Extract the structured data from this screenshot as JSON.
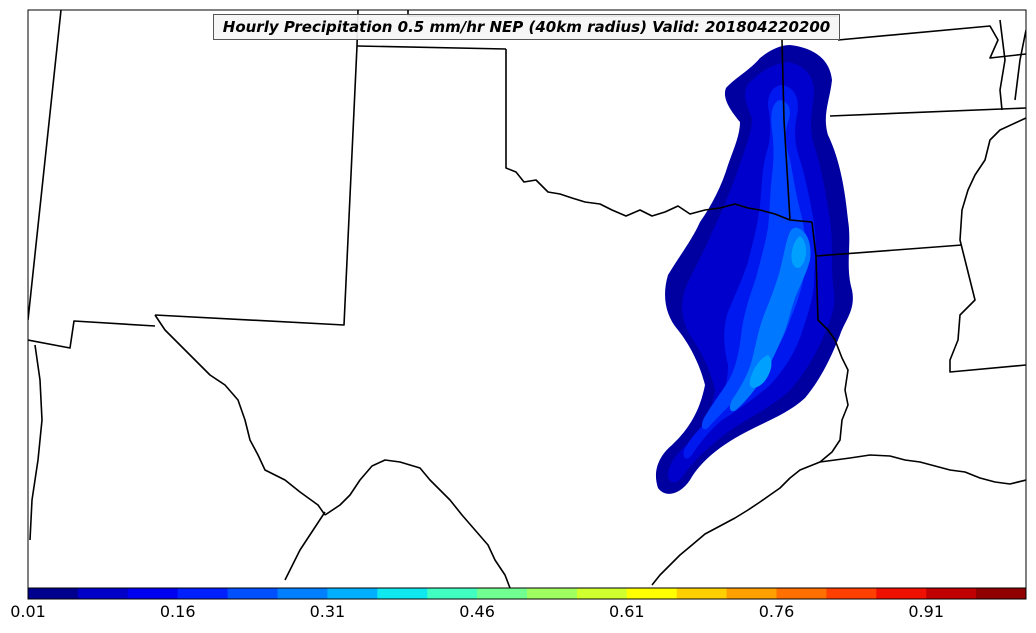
{
  "map": {
    "title": "Hourly Precipitation 0.5 mm/hr NEP (40km radius) Valid: 201804220200"
  },
  "colorbar": {
    "ticks": [
      "0.01",
      "0.16",
      "0.31",
      "0.46",
      "0.61",
      "0.76",
      "0.91"
    ],
    "colors": [
      "#00008f",
      "#0000c8",
      "#0000f0",
      "#0020ff",
      "#0050ff",
      "#0080ff",
      "#00b0ff",
      "#10e8f0",
      "#40ffc0",
      "#70ff90",
      "#a0ff60",
      "#d0ff30",
      "#ffff00",
      "#ffd000",
      "#ffa000",
      "#ff7000",
      "#ff4000",
      "#f01000",
      "#c00000",
      "#900000"
    ]
  },
  "field": {
    "levels": [
      {
        "color": "#0000a0"
      },
      {
        "color": "#0000cc"
      },
      {
        "color": "#0018f0"
      },
      {
        "color": "#0040ff"
      },
      {
        "color": "#0078ff"
      },
      {
        "color": "#00a0ff"
      }
    ]
  }
}
